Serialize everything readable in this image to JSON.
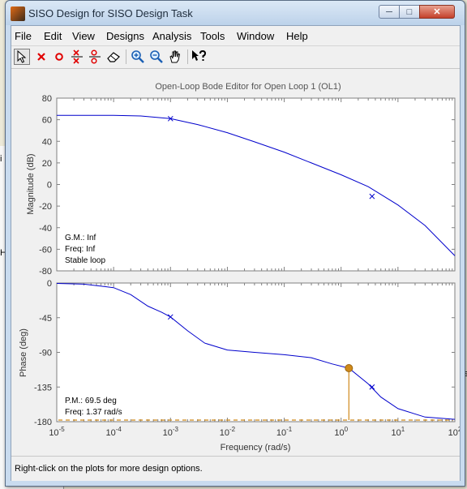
{
  "window": {
    "title": "SISO Design for SISO Design Task",
    "controls": {
      "minimize": "─",
      "maximize": "□",
      "close": "✕"
    }
  },
  "menubar": {
    "items": [
      "File",
      "Edit",
      "View",
      "Designs",
      "Analysis",
      "Tools",
      "Window",
      "Help"
    ]
  },
  "toolbar": {
    "tools": [
      "select-arrow-icon",
      "add-real-pole-icon",
      "add-real-zero-icon",
      "add-complex-pole-icon",
      "add-complex-zero-icon",
      "eraser-icon",
      "zoom-in-icon",
      "zoom-out-icon",
      "pan-hand-icon",
      "whats-this-icon"
    ]
  },
  "chart_data": {
    "type": "line",
    "title": "Open-Loop Bode Editor for Open Loop 1 (OL1)",
    "xlabel": "Frequency (rad/s)",
    "xscale": "log",
    "xlim": [
      1e-05,
      100
    ],
    "x_ticks": [
      "10^-5",
      "10^-4",
      "10^-3",
      "10^-2",
      "10^-1",
      "10^0",
      "10^1",
      "10^2"
    ],
    "magnitude": {
      "ylabel": "Magnitude (dB)",
      "ylim": [
        -80,
        80
      ],
      "yticks": [
        80,
        60,
        40,
        20,
        0,
        -20,
        -40,
        -60,
        -80
      ],
      "x": [
        1e-05,
        0.0001,
        0.0003,
        0.001,
        0.003,
        0.01,
        0.03,
        0.1,
        0.3,
        1,
        3,
        10,
        30,
        100
      ],
      "y": [
        64,
        64,
        63.5,
        61,
        55.5,
        48,
        39.5,
        30,
        20,
        9,
        -2,
        -19,
        -38,
        -66
      ],
      "markers": [
        {
          "x": 0.001,
          "y": 61
        },
        {
          "x": 3.5,
          "y": -11
        }
      ],
      "annotations": [
        "G.M.: Inf",
        "Freq: Inf",
        "Stable loop"
      ]
    },
    "phase": {
      "ylabel": "Phase (deg)",
      "ylim": [
        -180,
        0
      ],
      "yticks": [
        0,
        -45,
        -90,
        -135,
        -180
      ],
      "x": [
        1e-05,
        3e-05,
        0.0001,
        0.0002,
        0.0004,
        0.0007,
        0.001,
        0.002,
        0.004,
        0.01,
        0.03,
        0.1,
        0.3,
        0.7,
        1.37,
        3,
        5,
        10,
        30,
        100
      ],
      "y": [
        -0.5,
        -1.5,
        -6,
        -15,
        -30,
        -38,
        -44,
        -62,
        -78,
        -87,
        -90,
        -93,
        -97,
        -105,
        -110.5,
        -131,
        -148,
        -163,
        -174,
        -177
      ],
      "markers": [
        {
          "x": 0.001,
          "y": -44
        },
        {
          "x": 3.5,
          "y": -135
        }
      ],
      "reference_line": -180,
      "phase_margin_point": {
        "x": 1.37,
        "y": -110.5
      },
      "annotations": [
        "P.M.: 69.5 deg",
        "Freq: 1.37 rad/s"
      ]
    },
    "colors": {
      "curve": "#0000cc",
      "margin": "#d08a1a",
      "axes_bg": "#ffffff",
      "grid": "#808080"
    },
    "grid": false
  },
  "status": {
    "text": "Right-click on the plots for more design options."
  },
  "background": {
    "fragments": [
      "Fi",
      "i",
      "H",
      "es"
    ]
  }
}
